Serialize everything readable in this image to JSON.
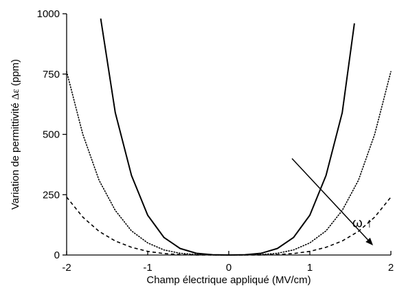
{
  "chart_data": {
    "type": "line",
    "xlabel": "Champ électrique appliqué (MV/cm)",
    "ylabel_prefix": "Variation de permittivité ",
    "ylabel_symbol": "Δε",
    "ylabel_suffix": " (ppm)",
    "xlim": [
      -2,
      2
    ],
    "ylim": [
      0,
      1000
    ],
    "xticks": [
      -2,
      -1,
      0,
      1,
      2
    ],
    "yticks": [
      0,
      250,
      500,
      750,
      1000
    ],
    "xtick_labels": [
      "-2",
      "-1",
      "0",
      "1",
      "2"
    ],
    "ytick_labels": [
      "0",
      "250",
      "500",
      "750",
      "1000"
    ],
    "grid": false,
    "legend": "none",
    "series": [
      {
        "style": "solid",
        "color": "#000000",
        "x": [
          -1.58,
          -1.4,
          -1.2,
          -1.0,
          -0.8,
          -0.6,
          -0.4,
          -0.2,
          0,
          0.2,
          0.4,
          0.6,
          0.8,
          1.0,
          1.2,
          1.4,
          1.55
        ],
        "y": [
          980,
          590,
          330,
          165,
          73,
          27,
          7,
          1,
          0,
          1,
          7,
          27,
          73,
          165,
          330,
          590,
          960
        ]
      },
      {
        "style": "dotted",
        "color": "#000000",
        "x": [
          -2.0,
          -1.8,
          -1.6,
          -1.4,
          -1.2,
          -1.0,
          -0.8,
          -0.6,
          -0.4,
          -0.2,
          0,
          0.2,
          0.4,
          0.6,
          0.8,
          1.0,
          1.2,
          1.4,
          1.6,
          1.8,
          2.0
        ],
        "y": [
          760,
          500,
          310,
          185,
          100,
          50,
          21,
          7,
          2,
          0.2,
          0,
          0.2,
          2,
          7,
          21,
          50,
          100,
          185,
          310,
          500,
          760
        ]
      },
      {
        "style": "dashed",
        "color": "#000000",
        "x": [
          -2.0,
          -1.8,
          -1.6,
          -1.4,
          -1.2,
          -1.0,
          -0.8,
          -0.6,
          -0.4,
          -0.2,
          0,
          0.2,
          0.4,
          0.6,
          0.8,
          1.0,
          1.2,
          1.4,
          1.6,
          1.8,
          2.0
        ],
        "y": [
          240,
          157,
          98,
          58,
          32,
          15,
          6,
          2,
          0.4,
          0,
          0,
          0,
          0.4,
          2,
          6,
          15,
          32,
          58,
          98,
          157,
          240
        ]
      }
    ],
    "annotations": [
      {
        "text": "ω ↑",
        "x": 1.65,
        "y": 115
      }
    ],
    "arrow": {
      "from": [
        0.78,
        400
      ],
      "to": [
        1.78,
        40
      ]
    }
  }
}
